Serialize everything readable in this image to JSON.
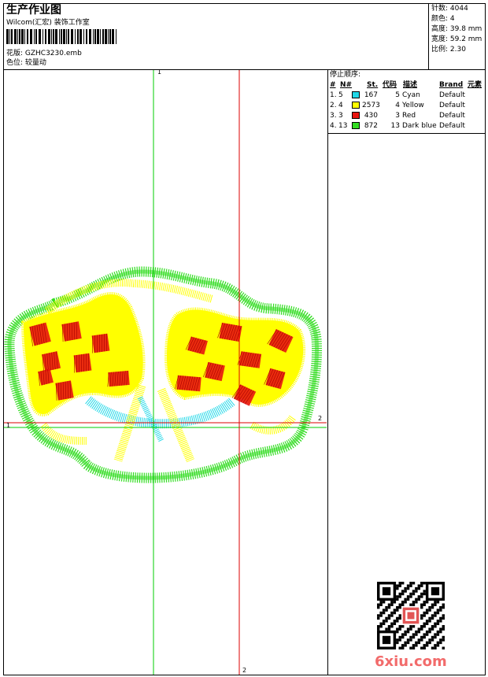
{
  "header": {
    "title": "生产作业图",
    "studio": "Wilcom(汇宏) 装饰工作室",
    "design_label": "花版: GZHC3230.emb",
    "colorway_label": "色位: 较量动"
  },
  "stats": {
    "stitches": "针数: 4044",
    "colors": "颜色: 4",
    "height": "高度: 39.8 mm",
    "width": "宽度: 59.2 mm",
    "scale": "比例: 2.30"
  },
  "stop_sequence": {
    "title": "停止顺序:",
    "headers": [
      "#",
      "N#",
      "St.",
      "代码",
      "描述",
      "Brand",
      "元素"
    ],
    "rows": [
      {
        "idx": "1.",
        "needle": "5",
        "color": "#22d8e8",
        "stitches": "167",
        "code": "5",
        "desc": "Cyan",
        "brand": "Default"
      },
      {
        "idx": "2.",
        "needle": "4",
        "color": "#ffff00",
        "stitches": "2573",
        "code": "4",
        "desc": "Yellow",
        "brand": "Default"
      },
      {
        "idx": "3.",
        "needle": "3",
        "color": "#e8150f",
        "stitches": "430",
        "code": "3",
        "desc": "Red",
        "brand": "Default"
      },
      {
        "idx": "4.",
        "needle": "13",
        "color": "#33dd22",
        "stitches": "872",
        "code": "13",
        "desc": "Dark blue",
        "brand": "Default"
      }
    ]
  },
  "guides": {
    "v1_label": "1",
    "h1_label": "1",
    "v2_label": "2",
    "h2_label": "2",
    "green_color": "#00cc00",
    "red_color": "#dd0000"
  },
  "watermark": {
    "logo_text": "6xiu.com"
  }
}
